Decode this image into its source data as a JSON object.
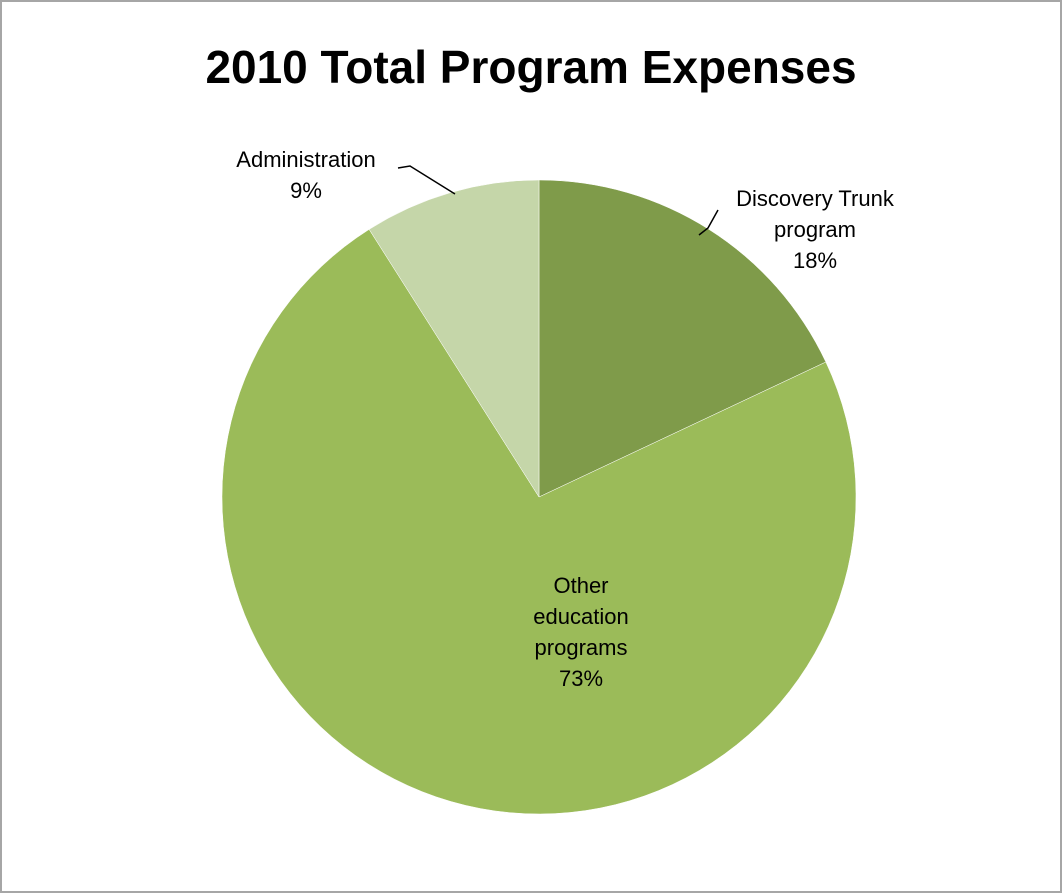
{
  "chart_data": {
    "type": "pie",
    "title": "2010 Total Program Expenses",
    "slices": [
      {
        "label": "Discovery Trunk program",
        "label_lines": [
          "Discovery Trunk",
          "program"
        ],
        "value": 18,
        "percent_label": "18%",
        "color": "#7f9b4a"
      },
      {
        "label": "Other education programs",
        "label_lines": [
          "Other",
          "education",
          "programs"
        ],
        "value": 73,
        "percent_label": "73%",
        "color": "#9bbb59"
      },
      {
        "label": "Administration",
        "label_lines": [
          "Administration"
        ],
        "value": 9,
        "percent_label": "9%",
        "color": "#c5d6a9"
      }
    ],
    "legend": "none"
  }
}
